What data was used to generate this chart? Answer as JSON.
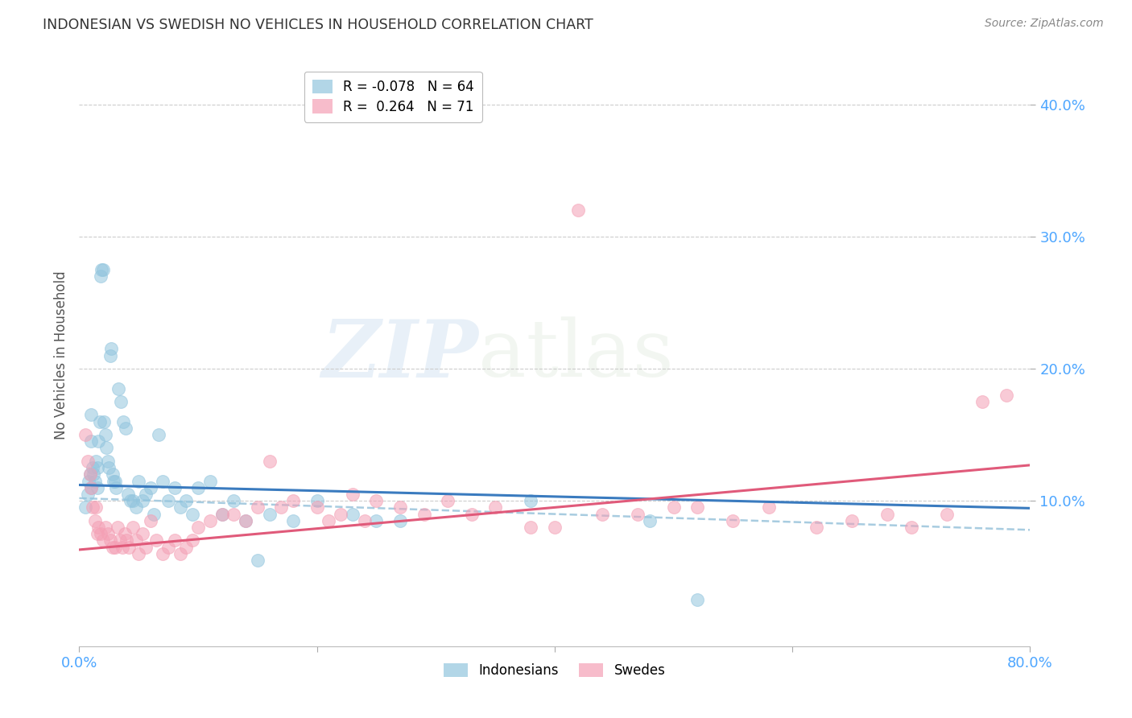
{
  "title": "INDONESIAN VS SWEDISH NO VEHICLES IN HOUSEHOLD CORRELATION CHART",
  "source": "Source: ZipAtlas.com",
  "ylabel": "No Vehicles in Household",
  "xlim": [
    0.0,
    0.8
  ],
  "ylim": [
    -0.01,
    0.43
  ],
  "watermark_zip": "ZIP",
  "watermark_atlas": "atlas",
  "indonesian_color": "#92c5de",
  "swedish_color": "#f4a0b5",
  "indonesian_line_color": "#3a7bbf",
  "swedish_line_color": "#e05a7a",
  "dashed_line_color": "#a8cce0",
  "indonesian_intercept": 0.112,
  "indonesian_slope": -0.022,
  "swedish_intercept": 0.063,
  "swedish_slope": 0.08,
  "dash_intercept": 0.102,
  "dash_slope": -0.03,
  "background_color": "#ffffff",
  "grid_color": "#cccccc",
  "title_color": "#333333",
  "axis_label_color": "#4da6ff",
  "indonesian_x": [
    0.005,
    0.007,
    0.008,
    0.009,
    0.01,
    0.01,
    0.01,
    0.011,
    0.012,
    0.013,
    0.014,
    0.015,
    0.015,
    0.016,
    0.017,
    0.018,
    0.019,
    0.02,
    0.021,
    0.022,
    0.023,
    0.024,
    0.025,
    0.026,
    0.027,
    0.028,
    0.029,
    0.03,
    0.031,
    0.033,
    0.035,
    0.037,
    0.039,
    0.041,
    0.043,
    0.045,
    0.048,
    0.05,
    0.053,
    0.056,
    0.06,
    0.063,
    0.067,
    0.07,
    0.075,
    0.08,
    0.085,
    0.09,
    0.095,
    0.1,
    0.11,
    0.12,
    0.13,
    0.14,
    0.15,
    0.16,
    0.18,
    0.2,
    0.23,
    0.25,
    0.27,
    0.38,
    0.48,
    0.52
  ],
  "indonesian_y": [
    0.095,
    0.105,
    0.115,
    0.12,
    0.165,
    0.145,
    0.11,
    0.125,
    0.12,
    0.115,
    0.13,
    0.11,
    0.125,
    0.145,
    0.16,
    0.27,
    0.275,
    0.275,
    0.16,
    0.15,
    0.14,
    0.13,
    0.125,
    0.21,
    0.215,
    0.12,
    0.115,
    0.115,
    0.11,
    0.185,
    0.175,
    0.16,
    0.155,
    0.105,
    0.1,
    0.1,
    0.095,
    0.115,
    0.1,
    0.105,
    0.11,
    0.09,
    0.15,
    0.115,
    0.1,
    0.11,
    0.095,
    0.1,
    0.09,
    0.11,
    0.115,
    0.09,
    0.1,
    0.085,
    0.055,
    0.09,
    0.085,
    0.1,
    0.09,
    0.085,
    0.085,
    0.1,
    0.085,
    0.025
  ],
  "swedish_x": [
    0.005,
    0.007,
    0.009,
    0.01,
    0.011,
    0.013,
    0.014,
    0.015,
    0.016,
    0.018,
    0.02,
    0.022,
    0.024,
    0.026,
    0.028,
    0.03,
    0.032,
    0.034,
    0.036,
    0.038,
    0.04,
    0.042,
    0.045,
    0.048,
    0.05,
    0.053,
    0.056,
    0.06,
    0.065,
    0.07,
    0.075,
    0.08,
    0.085,
    0.09,
    0.095,
    0.1,
    0.11,
    0.12,
    0.13,
    0.14,
    0.15,
    0.16,
    0.17,
    0.18,
    0.2,
    0.21,
    0.22,
    0.23,
    0.24,
    0.25,
    0.27,
    0.29,
    0.31,
    0.33,
    0.35,
    0.38,
    0.4,
    0.42,
    0.44,
    0.47,
    0.5,
    0.52,
    0.55,
    0.58,
    0.62,
    0.65,
    0.68,
    0.7,
    0.73,
    0.76,
    0.78
  ],
  "swedish_y": [
    0.15,
    0.13,
    0.12,
    0.11,
    0.095,
    0.085,
    0.095,
    0.075,
    0.08,
    0.075,
    0.07,
    0.08,
    0.075,
    0.07,
    0.065,
    0.065,
    0.08,
    0.07,
    0.065,
    0.075,
    0.07,
    0.065,
    0.08,
    0.07,
    0.06,
    0.075,
    0.065,
    0.085,
    0.07,
    0.06,
    0.065,
    0.07,
    0.06,
    0.065,
    0.07,
    0.08,
    0.085,
    0.09,
    0.09,
    0.085,
    0.095,
    0.13,
    0.095,
    0.1,
    0.095,
    0.085,
    0.09,
    0.105,
    0.085,
    0.1,
    0.095,
    0.09,
    0.1,
    0.09,
    0.095,
    0.08,
    0.08,
    0.32,
    0.09,
    0.09,
    0.095,
    0.095,
    0.085,
    0.095,
    0.08,
    0.085,
    0.09,
    0.08,
    0.09,
    0.175,
    0.18
  ]
}
